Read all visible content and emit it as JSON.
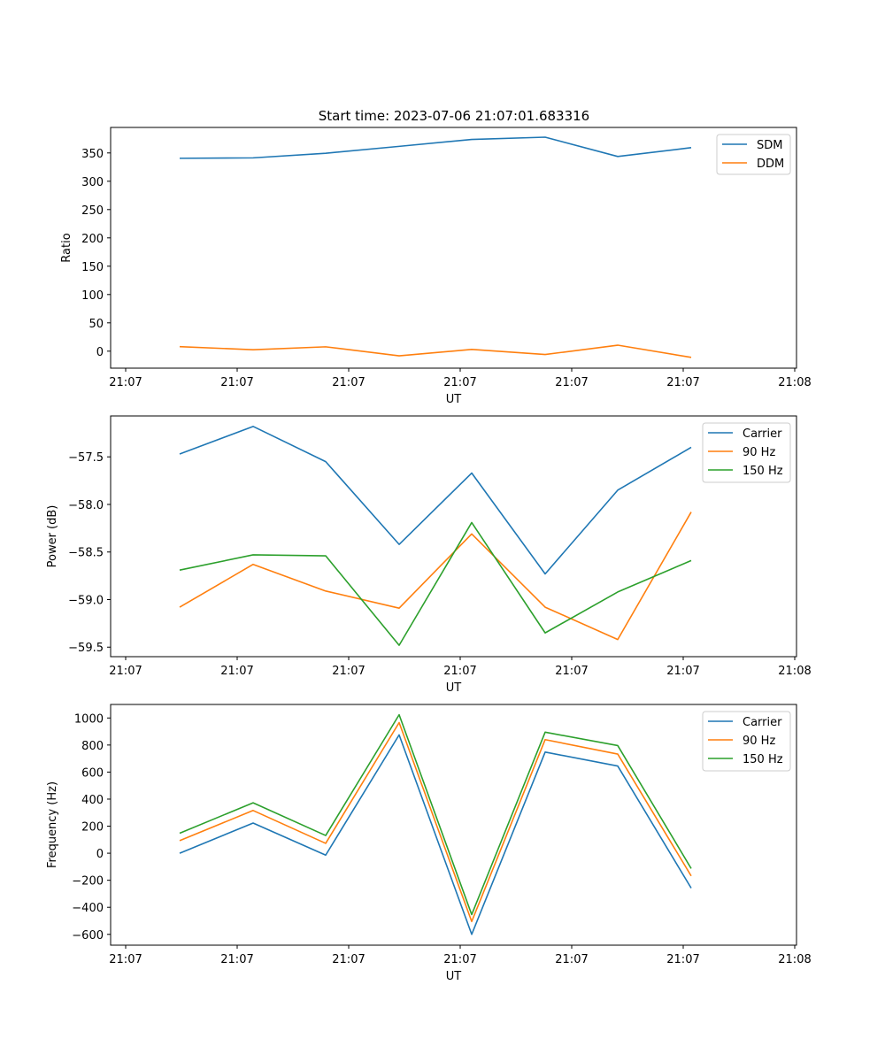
{
  "figure": {
    "title": "Start time: 2023-07-06 21:07:01.683316"
  },
  "chart_data": [
    {
      "type": "line",
      "title": "Start time: 2023-07-06 21:07:01.683316",
      "xlabel": "UT",
      "ylabel": "Ratio",
      "x_tick_labels": [
        "21:07",
        "21:07",
        "21:07",
        "21:07",
        "21:07",
        "21:07",
        "21:08"
      ],
      "y_ticks": [
        0,
        50,
        100,
        150,
        200,
        250,
        300,
        350
      ],
      "ylim": [
        -30,
        395
      ],
      "legend_location": "upper right",
      "series": [
        {
          "name": "SDM",
          "color": "#1f77b4",
          "values": [
            340.5,
            341.3,
            349.4,
            361.6,
            373.8,
            377.8,
            343.7,
            359.3
          ]
        },
        {
          "name": "DDM",
          "color": "#ff7f0e",
          "values": [
            8.0,
            2.5,
            7.7,
            -8.2,
            3.1,
            -5.9,
            10.6,
            -11.0
          ]
        }
      ]
    },
    {
      "type": "line",
      "xlabel": "UT",
      "ylabel": "Power (dB)",
      "x_tick_labels": [
        "21:07",
        "21:07",
        "21:07",
        "21:07",
        "21:07",
        "21:07",
        "21:08"
      ],
      "y_ticks": [
        -59.5,
        -59.0,
        -58.5,
        -58.0,
        -57.5
      ],
      "y_tick_labels": [
        "−59.5",
        "−59.0",
        "−58.5",
        "−58.0",
        "−57.5"
      ],
      "ylim": [
        -59.6,
        -57.07
      ],
      "legend_location": "upper right",
      "series": [
        {
          "name": "Carrier",
          "color": "#1f77b4",
          "values": [
            -57.47,
            -57.18,
            -57.55,
            -58.42,
            -57.67,
            -58.73,
            -57.85,
            -57.4
          ]
        },
        {
          "name": "90 Hz",
          "color": "#ff7f0e",
          "values": [
            -59.08,
            -58.63,
            -58.91,
            -59.09,
            -58.31,
            -59.08,
            -59.42,
            -58.08
          ]
        },
        {
          "name": "150 Hz",
          "color": "#2ca02c",
          "values": [
            -58.69,
            -58.53,
            -58.54,
            -59.48,
            -58.19,
            -59.35,
            -58.92,
            -58.59
          ]
        }
      ]
    },
    {
      "type": "line",
      "xlabel": "UT",
      "ylabel": "Frequency (Hz)",
      "x_tick_labels": [
        "21:07",
        "21:07",
        "21:07",
        "21:07",
        "21:07",
        "21:07",
        "21:08"
      ],
      "y_ticks": [
        -600,
        -400,
        -200,
        0,
        200,
        400,
        600,
        800,
        1000
      ],
      "y_tick_labels": [
        "−600",
        "−400",
        "−200",
        "0",
        "200",
        "400",
        "600",
        "800",
        "1000"
      ],
      "ylim": [
        -680,
        1100
      ],
      "legend_location": "upper right",
      "series": [
        {
          "name": "Carrier",
          "color": "#1f77b4",
          "values": [
            0,
            223,
            -14,
            875,
            -600,
            748,
            645,
            -258
          ]
        },
        {
          "name": "90 Hz",
          "color": "#ff7f0e",
          "values": [
            93,
            316,
            73,
            966,
            -505,
            840,
            733,
            -168
          ]
        },
        {
          "name": "150 Hz",
          "color": "#2ca02c",
          "values": [
            148,
            373,
            131,
            1024,
            -454,
            895,
            796,
            -113
          ]
        }
      ]
    }
  ]
}
